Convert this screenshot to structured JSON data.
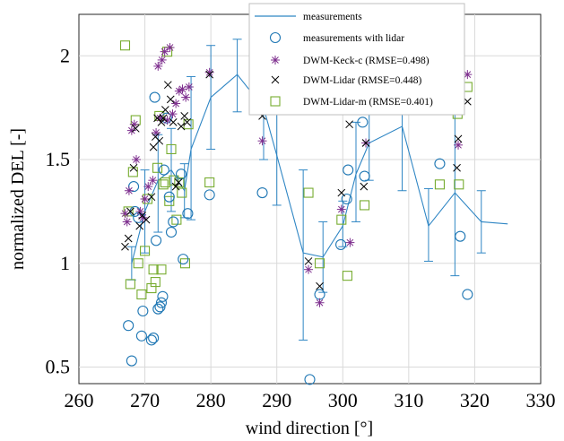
{
  "chart_data": {
    "type": "scatter",
    "xlabel": "wind direction [°]",
    "ylabel": "normalized DEL [-]",
    "xlim": [
      260,
      330
    ],
    "ylim": [
      0.42,
      2.2
    ],
    "xticks": [
      "260",
      "270",
      "280",
      "290",
      "300",
      "310",
      "320",
      "330"
    ],
    "yticks": [
      "0.5",
      "1",
      "1.5",
      "2"
    ],
    "grid": true,
    "legend_position": "top-right",
    "colors": {
      "measurements": "#2f86c4",
      "lidar": "#1f77b4",
      "keck": "#7e2f8e",
      "dwm_lidar": "#000000",
      "lidar_m": "#77ac30"
    },
    "series": [
      {
        "name": "measurements",
        "kind": "line-errorbar",
        "points": [
          {
            "x": 268,
            "y": 1.0,
            "lo": 0.92,
            "hi": 1.08
          },
          {
            "x": 270,
            "y": 1.25,
            "lo": 1.05,
            "hi": 1.45
          },
          {
            "x": 272,
            "y": 1.4,
            "lo": 1.15,
            "hi": 1.62
          },
          {
            "x": 274,
            "y": 1.45,
            "lo": 1.25,
            "hi": 1.65
          },
          {
            "x": 276,
            "y": 1.35,
            "lo": 1.22,
            "hi": 1.48
          },
          {
            "x": 277,
            "y": 1.55,
            "lo": 1.21,
            "hi": 1.9
          },
          {
            "x": 280,
            "y": 1.8,
            "lo": 1.55,
            "hi": 2.05
          },
          {
            "x": 284,
            "y": 1.91,
            "lo": 1.73,
            "hi": 2.08
          },
          {
            "x": 288,
            "y": 1.75,
            "lo": 1.5,
            "hi": 2.0
          },
          {
            "x": 290,
            "y": 1.52,
            "lo": 1.28,
            "hi": 1.75
          },
          {
            "x": 294,
            "y": 1.05,
            "lo": 0.63,
            "hi": 1.45
          },
          {
            "x": 297,
            "y": 1.03,
            "lo": 0.86,
            "hi": 1.2
          },
          {
            "x": 300,
            "y": 1.18,
            "lo": 1.08,
            "hi": 1.3
          },
          {
            "x": 302,
            "y": 1.43,
            "lo": 1.2,
            "hi": 1.68
          },
          {
            "x": 304,
            "y": 1.58,
            "lo": 1.4,
            "hi": 1.77
          },
          {
            "x": 309,
            "y": 1.66,
            "lo": 1.35,
            "hi": 1.98
          },
          {
            "x": 313,
            "y": 1.18,
            "lo": 1.01,
            "hi": 1.36
          },
          {
            "x": 317,
            "y": 1.34,
            "lo": 0.94,
            "hi": 1.74
          },
          {
            "x": 321,
            "y": 1.2,
            "lo": 1.05,
            "hi": 1.35
          },
          {
            "x": 325,
            "y": 1.19,
            "lo": 1.19,
            "hi": 1.19
          }
        ]
      },
      {
        "name": "measurements with lidar",
        "marker": "circle",
        "points": [
          [
            267.5,
            0.7
          ],
          [
            268,
            0.53
          ],
          [
            268.3,
            1.37
          ],
          [
            268.5,
            1.25
          ],
          [
            269,
            1.22
          ],
          [
            269.5,
            0.65
          ],
          [
            269.7,
            0.77
          ],
          [
            271,
            0.63
          ],
          [
            271.3,
            0.64
          ],
          [
            271.5,
            1.8
          ],
          [
            271.7,
            1.11
          ],
          [
            272,
            0.78
          ],
          [
            272.3,
            0.79
          ],
          [
            272.5,
            0.81
          ],
          [
            272.7,
            0.84
          ],
          [
            272.9,
            1.45
          ],
          [
            273.3,
            1.7
          ],
          [
            273.7,
            1.32
          ],
          [
            274,
            1.15
          ],
          [
            274.3,
            1.2
          ],
          [
            275.5,
            1.43
          ],
          [
            275.8,
            1.02
          ],
          [
            276.5,
            1.24
          ],
          [
            279.8,
            1.33
          ],
          [
            287.8,
            1.34
          ],
          [
            295,
            0.44
          ],
          [
            296.5,
            0.85
          ],
          [
            299.7,
            1.09
          ],
          [
            300.6,
            1.31
          ],
          [
            300.8,
            1.45
          ],
          [
            303,
            1.68
          ],
          [
            303.3,
            1.42
          ],
          [
            314.7,
            1.48
          ],
          [
            317.8,
            1.13
          ],
          [
            318.9,
            0.85
          ]
        ]
      },
      {
        "name": "DWM-Keck-c (RMSE=0.498)",
        "marker": "asterisk",
        "points": [
          [
            267,
            1.24
          ],
          [
            267.3,
            1.2
          ],
          [
            267.6,
            1.35
          ],
          [
            268,
            1.64
          ],
          [
            268.4,
            1.67
          ],
          [
            268.7,
            1.5
          ],
          [
            269.3,
            1.25
          ],
          [
            269.7,
            1.22
          ],
          [
            270,
            1.31
          ],
          [
            270.5,
            1.37
          ],
          [
            271.2,
            1.4
          ],
          [
            271.7,
            1.63
          ],
          [
            272,
            1.95
          ],
          [
            272.3,
            1.7
          ],
          [
            272.6,
            1.98
          ],
          [
            273,
            2.02
          ],
          [
            273.4,
            1.69
          ],
          [
            273.8,
            2.04
          ],
          [
            274.2,
            1.72
          ],
          [
            274.7,
            1.77
          ],
          [
            275.2,
            1.83
          ],
          [
            275.7,
            1.84
          ],
          [
            276.2,
            1.8
          ],
          [
            276.7,
            1.85
          ],
          [
            279.8,
            1.92
          ],
          [
            287.8,
            1.59
          ],
          [
            294.8,
            0.97
          ],
          [
            296.5,
            0.81
          ],
          [
            299.8,
            1.26
          ],
          [
            301.1,
            1.1
          ],
          [
            303.5,
            1.58
          ],
          [
            317.5,
            1.57
          ],
          [
            318.9,
            1.91
          ]
        ]
      },
      {
        "name": "DWM-Lidar (RMSE=0.448)",
        "marker": "x",
        "points": [
          [
            267,
            1.08
          ],
          [
            267.5,
            1.12
          ],
          [
            267.8,
            1.25
          ],
          [
            268.3,
            1.46
          ],
          [
            268.6,
            1.65
          ],
          [
            269.2,
            1.18
          ],
          [
            269.6,
            1.23
          ],
          [
            270.2,
            1.21
          ],
          [
            271,
            1.32
          ],
          [
            271.3,
            1.56
          ],
          [
            271.6,
            1.61
          ],
          [
            271.9,
            1.7
          ],
          [
            272.2,
            1.59
          ],
          [
            272.5,
            1.68
          ],
          [
            272.8,
            1.7
          ],
          [
            273.1,
            1.74
          ],
          [
            273.5,
            1.86
          ],
          [
            273.9,
            1.79
          ],
          [
            274.3,
            1.68
          ],
          [
            274.7,
            1.37
          ],
          [
            275.1,
            1.39
          ],
          [
            275.5,
            1.66
          ],
          [
            276.0,
            1.71
          ],
          [
            276.4,
            1.68
          ],
          [
            279.8,
            1.91
          ],
          [
            287.8,
            1.71
          ],
          [
            294.8,
            1.01
          ],
          [
            296.5,
            0.89
          ],
          [
            299.8,
            1.34
          ],
          [
            301,
            1.67
          ],
          [
            303.2,
            1.37
          ],
          [
            303.5,
            1.58
          ],
          [
            317.5,
            1.6
          ],
          [
            317.3,
            1.46
          ],
          [
            318.9,
            1.78
          ]
        ]
      },
      {
        "name": "DWM-Lidar-m (RMSE=0.401)",
        "marker": "square",
        "points": [
          [
            267,
            2.05
          ],
          [
            267.5,
            1.25
          ],
          [
            267.8,
            0.9
          ],
          [
            268.2,
            1.44
          ],
          [
            268.6,
            1.69
          ],
          [
            269,
            1.0
          ],
          [
            269.5,
            0.85
          ],
          [
            270,
            1.06
          ],
          [
            270.4,
            1.31
          ],
          [
            271,
            0.88
          ],
          [
            271.3,
            0.97
          ],
          [
            271.6,
            0.91
          ],
          [
            271.9,
            1.46
          ],
          [
            272.2,
            1.71
          ],
          [
            272.5,
            0.97
          ],
          [
            272.8,
            1.38
          ],
          [
            273.1,
            1.39
          ],
          [
            273.4,
            2.02
          ],
          [
            273.7,
            1.3
          ],
          [
            274,
            1.55
          ],
          [
            274.4,
            1.4
          ],
          [
            274.8,
            1.21
          ],
          [
            275.2,
            1.39
          ],
          [
            275.6,
            1.34
          ],
          [
            276.1,
            1.0
          ],
          [
            276.6,
            1.67
          ],
          [
            279.8,
            1.39
          ],
          [
            294.8,
            1.34
          ],
          [
            296.5,
            1.0
          ],
          [
            299.8,
            1.21
          ],
          [
            300.7,
            0.94
          ],
          [
            303.3,
            1.28
          ],
          [
            314.7,
            1.38
          ],
          [
            317.4,
            1.72
          ],
          [
            317.6,
            1.38
          ],
          [
            318.9,
            1.85
          ]
        ]
      }
    ]
  }
}
